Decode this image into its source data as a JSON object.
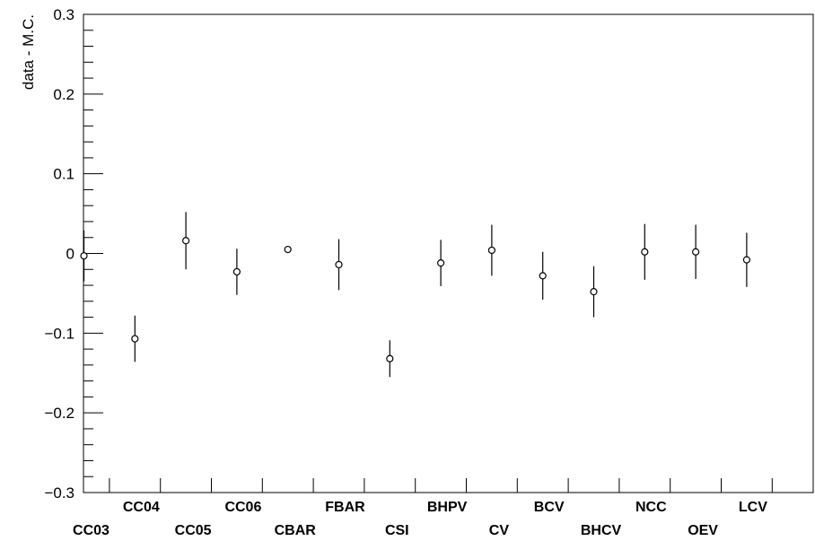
{
  "chart_data": {
    "type": "scatter",
    "title": "",
    "xlabel": "",
    "ylabel": "data - M.C.",
    "ylim": [
      -0.3,
      0.3
    ],
    "yticks": [
      {
        "value": -0.3,
        "label": "−0.3"
      },
      {
        "value": -0.2,
        "label": "−0.2"
      },
      {
        "value": -0.1,
        "label": "−0.1"
      },
      {
        "value": 0,
        "label": "0"
      },
      {
        "value": 0.1,
        "label": "0.1"
      },
      {
        "value": 0.2,
        "label": "0.2"
      },
      {
        "value": 0.3,
        "label": "0.3"
      }
    ],
    "categories": [
      "CC03",
      "CC04",
      "CC05",
      "CC06",
      "CBAR",
      "FBAR",
      "CSI",
      "BHPV",
      "CV",
      "BCV",
      "BHCV",
      "NCC",
      "OEV",
      "LCV"
    ],
    "values": [
      -0.003,
      -0.107,
      0.016,
      -0.023,
      0.005,
      -0.014,
      -0.132,
      -0.012,
      0.004,
      -0.028,
      -0.048,
      0.002,
      0.002,
      -0.008
    ],
    "errors": [
      0.032,
      0.029,
      0.036,
      0.029,
      0.004,
      0.032,
      0.023,
      0.029,
      0.032,
      0.03,
      0.032,
      0.035,
      0.034,
      0.034
    ],
    "grid": false,
    "legend": "none",
    "marker": "open-circle",
    "colors": {
      "axis": "#000000",
      "marker_fill": "#ffffff",
      "marker_stroke": "#000000"
    }
  }
}
